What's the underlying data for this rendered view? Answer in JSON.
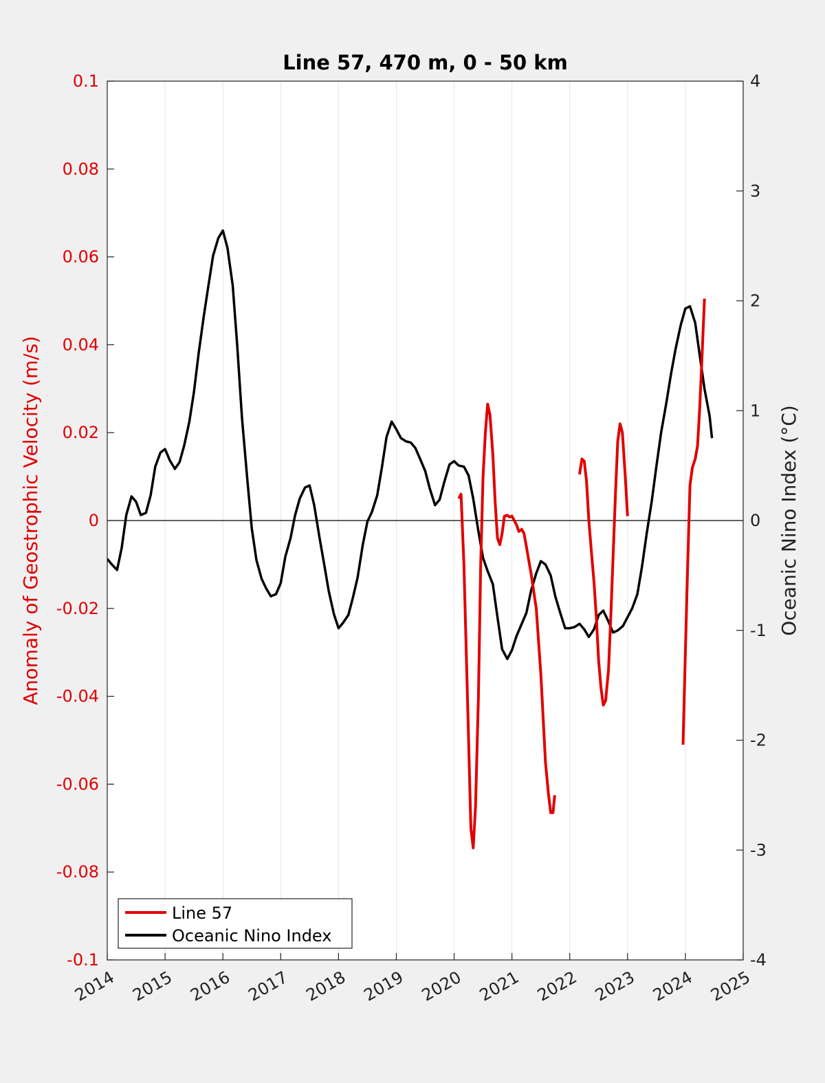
{
  "chart_data": {
    "type": "line",
    "title": "Line 57, 470 m, 0 - 50 km",
    "xlim": [
      2014,
      2025
    ],
    "x_ticks": [
      "2014",
      "2015",
      "2016",
      "2017",
      "2018",
      "2019",
      "2020",
      "2021",
      "2022",
      "2023",
      "2024",
      "2025"
    ],
    "y_left": {
      "label": "Anomaly of Geostrophic Velocity (m/s)",
      "ylim": [
        -0.1,
        0.1
      ],
      "ticks": [
        "-0.1",
        "-0.08",
        "-0.06",
        "-0.04",
        "-0.02",
        "0",
        "0.02",
        "0.04",
        "0.06",
        "0.08",
        "0.1"
      ],
      "color": "#e00000"
    },
    "y_right": {
      "label": "Oceanic Nino Index (°C)",
      "ylim": [
        -4,
        4
      ],
      "ticks": [
        "-4",
        "-3",
        "-2",
        "-1",
        "0",
        "1",
        "2",
        "3",
        "4"
      ],
      "color": "#000000"
    },
    "grid": "vertical",
    "legend_position": "bottom-left",
    "series": [
      {
        "name": "Line 57",
        "axis": "left",
        "color": "#e00000",
        "segments": [
          [
            [
              2020.08,
              0.005
            ],
            [
              2020.12,
              0.006
            ],
            [
              2020.17,
              -0.01
            ],
            [
              2020.21,
              -0.03
            ],
            [
              2020.25,
              -0.05
            ],
            [
              2020.29,
              -0.07
            ],
            [
              2020.33,
              -0.0745
            ],
            [
              2020.37,
              -0.065
            ],
            [
              2020.42,
              -0.04
            ],
            [
              2020.46,
              -0.01
            ],
            [
              2020.5,
              0.01
            ],
            [
              2020.54,
              0.02
            ],
            [
              2020.58,
              0.0265
            ],
            [
              2020.62,
              0.024
            ],
            [
              2020.67,
              0.015
            ],
            [
              2020.71,
              0.004
            ],
            [
              2020.75,
              -0.004
            ],
            [
              2020.79,
              -0.0055
            ],
            [
              2020.83,
              -0.003
            ],
            [
              2020.87,
              0.001
            ],
            [
              2020.92,
              0.0012
            ],
            [
              2020.96,
              0.0008
            ],
            [
              2021.0,
              0.001
            ],
            [
              2021.04,
              0.0
            ],
            [
              2021.08,
              -0.001
            ],
            [
              2021.12,
              -0.0025
            ],
            [
              2021.17,
              -0.002
            ],
            [
              2021.21,
              -0.003
            ],
            [
              2021.25,
              -0.006
            ],
            [
              2021.33,
              -0.012
            ],
            [
              2021.42,
              -0.02
            ],
            [
              2021.5,
              -0.035
            ],
            [
              2021.58,
              -0.055
            ],
            [
              2021.63,
              -0.062
            ],
            [
              2021.67,
              -0.0665
            ],
            [
              2021.71,
              -0.0665
            ],
            [
              2021.74,
              -0.0625
            ]
          ],
          [
            [
              2022.17,
              0.0105
            ],
            [
              2022.21,
              0.014
            ],
            [
              2022.25,
              0.0135
            ],
            [
              2022.29,
              0.009
            ],
            [
              2022.33,
              0.0
            ],
            [
              2022.38,
              -0.008
            ],
            [
              2022.42,
              -0.014
            ],
            [
              2022.46,
              -0.022
            ],
            [
              2022.5,
              -0.032
            ],
            [
              2022.54,
              -0.038
            ],
            [
              2022.58,
              -0.042
            ],
            [
              2022.62,
              -0.041
            ],
            [
              2022.67,
              -0.034
            ],
            [
              2022.71,
              -0.022
            ],
            [
              2022.75,
              -0.008
            ],
            [
              2022.79,
              0.006
            ],
            [
              2022.83,
              0.018
            ],
            [
              2022.87,
              0.022
            ],
            [
              2022.91,
              0.02
            ],
            [
              2022.96,
              0.01
            ],
            [
              2023.0,
              0.001
            ]
          ],
          [
            [
              2023.96,
              -0.051
            ],
            [
              2024.0,
              -0.03
            ],
            [
              2024.04,
              -0.01
            ],
            [
              2024.08,
              0.008
            ],
            [
              2024.12,
              0.012
            ],
            [
              2024.17,
              0.014
            ],
            [
              2024.21,
              0.017
            ],
            [
              2024.25,
              0.026
            ],
            [
              2024.29,
              0.038
            ],
            [
              2024.33,
              0.0505
            ]
          ]
        ]
      },
      {
        "name": "Oceanic Nino Index",
        "axis": "right",
        "color": "#000000",
        "points": [
          [
            2014.0,
            -0.35
          ],
          [
            2014.08,
            -0.4
          ],
          [
            2014.17,
            -0.45
          ],
          [
            2014.25,
            -0.25
          ],
          [
            2014.33,
            0.05
          ],
          [
            2014.42,
            0.22
          ],
          [
            2014.5,
            0.17
          ],
          [
            2014.58,
            0.05
          ],
          [
            2014.67,
            0.07
          ],
          [
            2014.75,
            0.23
          ],
          [
            2014.83,
            0.49
          ],
          [
            2014.92,
            0.62
          ],
          [
            2015.0,
            0.65
          ],
          [
            2015.08,
            0.55
          ],
          [
            2015.17,
            0.47
          ],
          [
            2015.25,
            0.53
          ],
          [
            2015.33,
            0.68
          ],
          [
            2015.42,
            0.9
          ],
          [
            2015.5,
            1.17
          ],
          [
            2015.58,
            1.52
          ],
          [
            2015.67,
            1.86
          ],
          [
            2015.75,
            2.14
          ],
          [
            2015.83,
            2.41
          ],
          [
            2015.92,
            2.57
          ],
          [
            2016.0,
            2.64
          ],
          [
            2016.08,
            2.48
          ],
          [
            2016.17,
            2.14
          ],
          [
            2016.25,
            1.58
          ],
          [
            2016.33,
            0.94
          ],
          [
            2016.42,
            0.39
          ],
          [
            2016.5,
            -0.07
          ],
          [
            2016.58,
            -0.36
          ],
          [
            2016.67,
            -0.53
          ],
          [
            2016.75,
            -0.62
          ],
          [
            2016.83,
            -0.69
          ],
          [
            2016.92,
            -0.67
          ],
          [
            2017.0,
            -0.57
          ],
          [
            2017.08,
            -0.33
          ],
          [
            2017.17,
            -0.16
          ],
          [
            2017.25,
            0.05
          ],
          [
            2017.33,
            0.2
          ],
          [
            2017.42,
            0.3
          ],
          [
            2017.5,
            0.32
          ],
          [
            2017.58,
            0.14
          ],
          [
            2017.67,
            -0.15
          ],
          [
            2017.75,
            -0.39
          ],
          [
            2017.83,
            -0.64
          ],
          [
            2017.92,
            -0.85
          ],
          [
            2018.0,
            -0.98
          ],
          [
            2018.08,
            -0.93
          ],
          [
            2018.17,
            -0.86
          ],
          [
            2018.25,
            -0.7
          ],
          [
            2018.33,
            -0.52
          ],
          [
            2018.42,
            -0.22
          ],
          [
            2018.5,
            -0.01
          ],
          [
            2018.58,
            0.08
          ],
          [
            2018.67,
            0.23
          ],
          [
            2018.75,
            0.48
          ],
          [
            2018.83,
            0.76
          ],
          [
            2018.92,
            0.9
          ],
          [
            2019.0,
            0.83
          ],
          [
            2019.08,
            0.75
          ],
          [
            2019.17,
            0.72
          ],
          [
            2019.25,
            0.71
          ],
          [
            2019.33,
            0.66
          ],
          [
            2019.42,
            0.55
          ],
          [
            2019.5,
            0.45
          ],
          [
            2019.58,
            0.29
          ],
          [
            2019.67,
            0.14
          ],
          [
            2019.75,
            0.19
          ],
          [
            2019.83,
            0.35
          ],
          [
            2019.92,
            0.51
          ],
          [
            2020.0,
            0.54
          ],
          [
            2020.08,
            0.5
          ],
          [
            2020.17,
            0.49
          ],
          [
            2020.25,
            0.41
          ],
          [
            2020.33,
            0.2
          ],
          [
            2020.42,
            -0.1
          ],
          [
            2020.5,
            -0.34
          ],
          [
            2020.58,
            -0.46
          ],
          [
            2020.67,
            -0.58
          ],
          [
            2020.75,
            -0.88
          ],
          [
            2020.83,
            -1.17
          ],
          [
            2020.92,
            -1.26
          ],
          [
            2021.0,
            -1.18
          ],
          [
            2021.08,
            -1.05
          ],
          [
            2021.17,
            -0.94
          ],
          [
            2021.25,
            -0.84
          ],
          [
            2021.33,
            -0.64
          ],
          [
            2021.42,
            -0.48
          ],
          [
            2021.5,
            -0.37
          ],
          [
            2021.58,
            -0.4
          ],
          [
            2021.67,
            -0.5
          ],
          [
            2021.75,
            -0.69
          ],
          [
            2021.83,
            -0.83
          ],
          [
            2021.92,
            -0.98
          ],
          [
            2022.0,
            -0.98
          ],
          [
            2022.08,
            -0.97
          ],
          [
            2022.17,
            -0.94
          ],
          [
            2022.25,
            -0.99
          ],
          [
            2022.33,
            -1.06
          ],
          [
            2022.42,
            -0.99
          ],
          [
            2022.5,
            -0.86
          ],
          [
            2022.58,
            -0.82
          ],
          [
            2022.67,
            -0.92
          ],
          [
            2022.75,
            -1.02
          ],
          [
            2022.83,
            -1.0
          ],
          [
            2022.92,
            -0.96
          ],
          [
            2023.0,
            -0.88
          ],
          [
            2023.08,
            -0.8
          ],
          [
            2023.17,
            -0.67
          ],
          [
            2023.25,
            -0.42
          ],
          [
            2023.33,
            -0.12
          ],
          [
            2023.42,
            0.18
          ],
          [
            2023.5,
            0.5
          ],
          [
            2023.58,
            0.8
          ],
          [
            2023.67,
            1.07
          ],
          [
            2023.75,
            1.33
          ],
          [
            2023.83,
            1.56
          ],
          [
            2023.92,
            1.78
          ],
          [
            2024.0,
            1.93
          ],
          [
            2024.08,
            1.95
          ],
          [
            2024.17,
            1.8
          ],
          [
            2024.25,
            1.5
          ],
          [
            2024.33,
            1.2
          ],
          [
            2024.42,
            0.95
          ],
          [
            2024.46,
            0.75
          ]
        ]
      }
    ]
  }
}
